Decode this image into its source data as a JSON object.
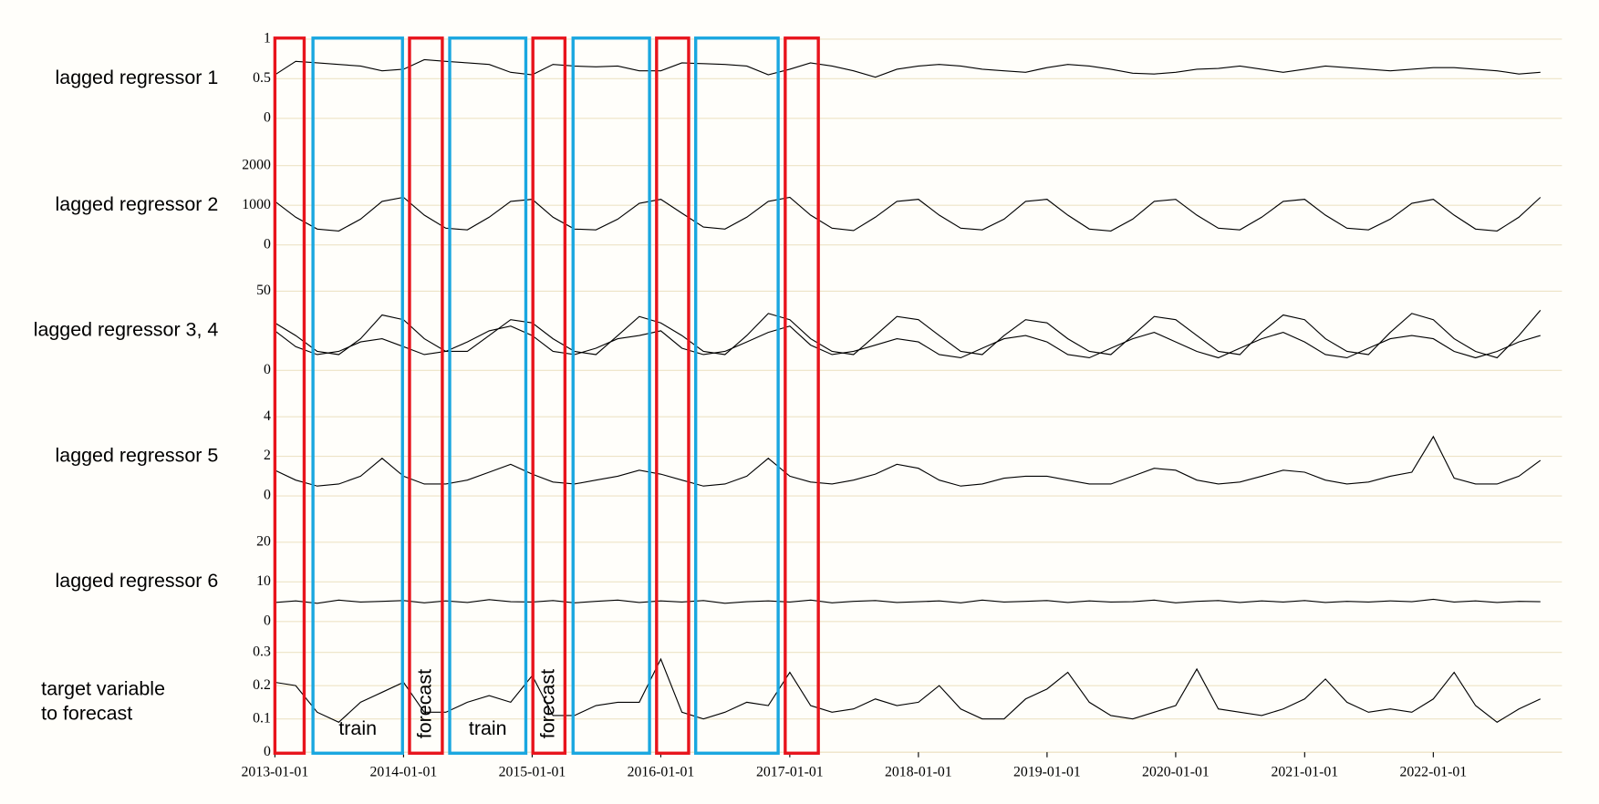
{
  "chart_data": {
    "type": "line",
    "xlim": [
      "2013-01-01",
      "2023-01-01"
    ],
    "xticks": [
      "2013-01-01",
      "2014-01-01",
      "2015-01-01",
      "2016-01-01",
      "2017-01-01",
      "2018-01-01",
      "2019-01-01",
      "2020-01-01",
      "2021-01-01",
      "2022-01-01"
    ],
    "x": [
      "2013-01-01",
      "2013-03-01",
      "2013-05-01",
      "2013-07-01",
      "2013-09-01",
      "2013-11-01",
      "2014-01-01",
      "2014-03-01",
      "2014-05-01",
      "2014-07-01",
      "2014-09-01",
      "2014-11-01",
      "2015-01-01",
      "2015-03-01",
      "2015-05-01",
      "2015-07-01",
      "2015-09-01",
      "2015-11-01",
      "2016-01-01",
      "2016-03-01",
      "2016-05-01",
      "2016-07-01",
      "2016-09-01",
      "2016-11-01",
      "2017-01-01",
      "2017-03-01",
      "2017-05-01",
      "2017-07-01",
      "2017-09-01",
      "2017-11-01",
      "2018-01-01",
      "2018-03-01",
      "2018-05-01",
      "2018-07-01",
      "2018-09-01",
      "2018-11-01",
      "2019-01-01",
      "2019-03-01",
      "2019-05-01",
      "2019-07-01",
      "2019-09-01",
      "2019-11-01",
      "2020-01-01",
      "2020-03-01",
      "2020-05-01",
      "2020-07-01",
      "2020-09-01",
      "2020-11-01",
      "2021-01-01",
      "2021-03-01",
      "2021-05-01",
      "2021-07-01",
      "2021-09-01",
      "2021-11-01",
      "2022-01-01",
      "2022-03-01",
      "2022-05-01",
      "2022-07-01",
      "2022-09-01",
      "2022-11-01"
    ],
    "grid": true,
    "grid_color": "#ede3c6",
    "panels": [
      {
        "title": [
          "lagged regressor 1"
        ],
        "ylim": [
          0,
          1
        ],
        "yticks": [
          0,
          0.5,
          1
        ],
        "series": [
          {
            "color": "#000000",
            "values": [
              0.55,
              0.72,
              0.7,
              0.68,
              0.66,
              0.6,
              0.62,
              0.74,
              0.72,
              0.7,
              0.68,
              0.58,
              0.55,
              0.68,
              0.66,
              0.65,
              0.66,
              0.6,
              0.6,
              0.7,
              0.69,
              0.68,
              0.66,
              0.55,
              0.62,
              0.7,
              0.66,
              0.6,
              0.52,
              0.62,
              0.66,
              0.68,
              0.66,
              0.62,
              0.6,
              0.58,
              0.64,
              0.68,
              0.66,
              0.62,
              0.57,
              0.56,
              0.58,
              0.62,
              0.63,
              0.66,
              0.62,
              0.58,
              0.62,
              0.66,
              0.64,
              0.62,
              0.6,
              0.62,
              0.64,
              0.64,
              0.62,
              0.6,
              0.56,
              0.58
            ]
          }
        ]
      },
      {
        "title": [
          "lagged regressor 2"
        ],
        "ylim": [
          0,
          2000
        ],
        "yticks": [
          0,
          1000,
          2000
        ],
        "series": [
          {
            "color": "#000000",
            "values": [
              1100,
              700,
              400,
              350,
              650,
              1100,
              1200,
              750,
              420,
              380,
              700,
              1100,
              1150,
              700,
              400,
              380,
              650,
              1050,
              1150,
              800,
              450,
              400,
              700,
              1100,
              1200,
              750,
              420,
              360,
              700,
              1100,
              1150,
              750,
              420,
              380,
              650,
              1100,
              1150,
              750,
              400,
              350,
              650,
              1100,
              1150,
              750,
              420,
              380,
              700,
              1100,
              1150,
              750,
              420,
              380,
              650,
              1050,
              1150,
              750,
              400,
              350,
              700,
              1200
            ]
          }
        ]
      },
      {
        "title": [
          "lagged regressor 3, 4"
        ],
        "ylim": [
          0,
          50
        ],
        "yticks": [
          0,
          50
        ],
        "series": [
          {
            "color": "#000000",
            "values": [
              30,
              22,
              12,
              10,
              20,
              35,
              32,
              20,
              12,
              12,
              22,
              32,
              30,
              20,
              12,
              10,
              22,
              34,
              30,
              22,
              12,
              10,
              22,
              36,
              32,
              20,
              12,
              10,
              22,
              34,
              32,
              22,
              12,
              10,
              22,
              32,
              30,
              20,
              12,
              10,
              22,
              34,
              32,
              22,
              12,
              10,
              24,
              35,
              32,
              20,
              12,
              10,
              24,
              36,
              32,
              20,
              12,
              8,
              22,
              38
            ]
          },
          {
            "color": "#000000",
            "values": [
              25,
              15,
              10,
              12,
              18,
              20,
              15,
              10,
              12,
              18,
              25,
              28,
              22,
              12,
              10,
              14,
              20,
              22,
              25,
              14,
              10,
              12,
              18,
              24,
              28,
              16,
              10,
              12,
              16,
              20,
              18,
              10,
              8,
              14,
              20,
              22,
              18,
              10,
              8,
              14,
              20,
              24,
              18,
              12,
              8,
              14,
              20,
              24,
              18,
              10,
              8,
              14,
              20,
              22,
              20,
              12,
              8,
              12,
              18,
              22
            ]
          }
        ]
      },
      {
        "title": [
          "lagged regressor 5"
        ],
        "ylim": [
          0,
          4
        ],
        "yticks": [
          0,
          2,
          4
        ],
        "series": [
          {
            "color": "#000000",
            "values": [
              1.3,
              0.8,
              0.5,
              0.6,
              1.0,
              1.9,
              1.0,
              0.6,
              0.6,
              0.8,
              1.2,
              1.6,
              1.1,
              0.7,
              0.6,
              0.8,
              1.0,
              1.3,
              1.1,
              0.8,
              0.5,
              0.6,
              1.0,
              1.9,
              1.0,
              0.7,
              0.6,
              0.8,
              1.1,
              1.6,
              1.4,
              0.8,
              0.5,
              0.6,
              0.9,
              1.0,
              1.0,
              0.8,
              0.6,
              0.6,
              1.0,
              1.4,
              1.3,
              0.8,
              0.6,
              0.7,
              1.0,
              1.3,
              1.2,
              0.8,
              0.6,
              0.7,
              1.0,
              1.2,
              3.0,
              0.9,
              0.6,
              0.6,
              1.0,
              1.8
            ]
          }
        ]
      },
      {
        "title": [
          "lagged regressor 6"
        ],
        "ylim": [
          0,
          20
        ],
        "yticks": [
          0,
          10,
          20
        ],
        "series": [
          {
            "color": "#000000",
            "values": [
              4.8,
              5.2,
              4.6,
              5.4,
              4.9,
              5.1,
              5.3,
              4.7,
              5.2,
              4.8,
              5.5,
              5.0,
              4.9,
              5.3,
              4.7,
              5.1,
              5.4,
              4.8,
              5.2,
              4.9,
              5.3,
              4.6,
              5.0,
              5.2,
              4.9,
              5.4,
              4.7,
              5.1,
              5.3,
              4.8,
              5.0,
              5.2,
              4.7,
              5.4,
              4.9,
              5.1,
              5.3,
              4.8,
              5.2,
              4.9,
              5.0,
              5.4,
              4.7,
              5.1,
              5.3,
              4.8,
              5.2,
              4.9,
              5.3,
              4.8,
              5.1,
              4.9,
              5.2,
              5.0,
              5.6,
              4.9,
              5.2,
              4.8,
              5.1,
              5.0
            ]
          }
        ]
      },
      {
        "title": [
          "target variable",
          "to forecast"
        ],
        "ylim": [
          0,
          0.3
        ],
        "yticks": [
          0,
          0.1,
          0.2,
          0.3
        ],
        "series": [
          {
            "color": "#000000",
            "values": [
              0.21,
              0.2,
              0.12,
              0.09,
              0.15,
              0.18,
              0.21,
              0.12,
              0.12,
              0.15,
              0.17,
              0.15,
              0.23,
              0.11,
              0.11,
              0.14,
              0.15,
              0.15,
              0.28,
              0.12,
              0.1,
              0.12,
              0.15,
              0.14,
              0.24,
              0.14,
              0.12,
              0.13,
              0.16,
              0.14,
              0.15,
              0.2,
              0.13,
              0.1,
              0.1,
              0.16,
              0.19,
              0.24,
              0.15,
              0.11,
              0.1,
              0.12,
              0.14,
              0.25,
              0.13,
              0.12,
              0.11,
              0.13,
              0.16,
              0.22,
              0.15,
              0.12,
              0.13,
              0.12,
              0.16,
              0.24,
              0.14,
              0.09,
              0.13,
              0.16
            ]
          }
        ]
      }
    ],
    "windows": [
      {
        "start": "2013-01-01",
        "end": "2013-03-25",
        "color": "#e8141c"
      },
      {
        "start": "2013-04-19",
        "end": "2013-12-29",
        "color": "#1aa7e0",
        "label": "train"
      },
      {
        "start": "2014-01-18",
        "end": "2014-04-21",
        "color": "#e8141c",
        "label": "forecast"
      },
      {
        "start": "2014-05-12",
        "end": "2014-12-14",
        "color": "#1aa7e0",
        "label": "train"
      },
      {
        "start": "2015-01-03",
        "end": "2015-04-04",
        "color": "#e8141c",
        "label": "forecast"
      },
      {
        "start": "2015-04-27",
        "end": "2015-11-30",
        "color": "#1aa7e0"
      },
      {
        "start": "2015-12-20",
        "end": "2016-03-20",
        "color": "#e8141c"
      },
      {
        "start": "2016-04-09",
        "end": "2016-11-29",
        "color": "#1aa7e0"
      },
      {
        "start": "2016-12-19",
        "end": "2017-03-23",
        "color": "#e8141c"
      }
    ]
  }
}
